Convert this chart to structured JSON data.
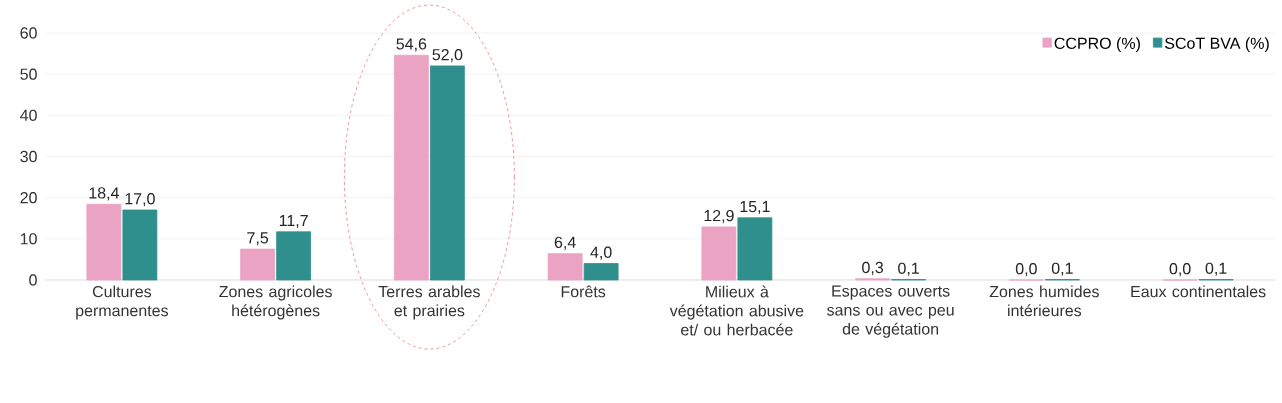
{
  "chart_data": {
    "type": "bar",
    "categories": [
      "Cultures permanentes",
      "Zones agricoles hétérogènes",
      "Terres arables et prairies",
      "Forêts",
      "Milieux à végétation abusive et/ ou herbacée",
      "Espaces ouverts sans ou avec peu de végétation",
      "Zones humides intérieures",
      "Eaux continentales"
    ],
    "series": [
      {
        "name": "CCPRO (%)",
        "color": "#eaa3c3",
        "values": [
          18.4,
          7.5,
          54.6,
          6.4,
          12.9,
          0.3,
          0.0,
          0.0
        ],
        "value_labels": [
          "18,4",
          "7,5",
          "54,6",
          "6,4",
          "12,9",
          "0,3",
          "0,0",
          "0,0"
        ]
      },
      {
        "name": "SCoT BVA (%)",
        "color": "#2f8f8c",
        "values": [
          17.0,
          11.7,
          52.0,
          4.0,
          15.1,
          0.1,
          0.1,
          0.1
        ],
        "value_labels": [
          "17,0",
          "11,7",
          "52,0",
          "4,0",
          "15,1",
          "0,1",
          "0,1",
          "0,1"
        ]
      }
    ],
    "ylim": [
      0,
      60
    ],
    "yticks": [
      0,
      10,
      20,
      30,
      40,
      50,
      60
    ],
    "grid": "y",
    "legend": "top right"
  }
}
